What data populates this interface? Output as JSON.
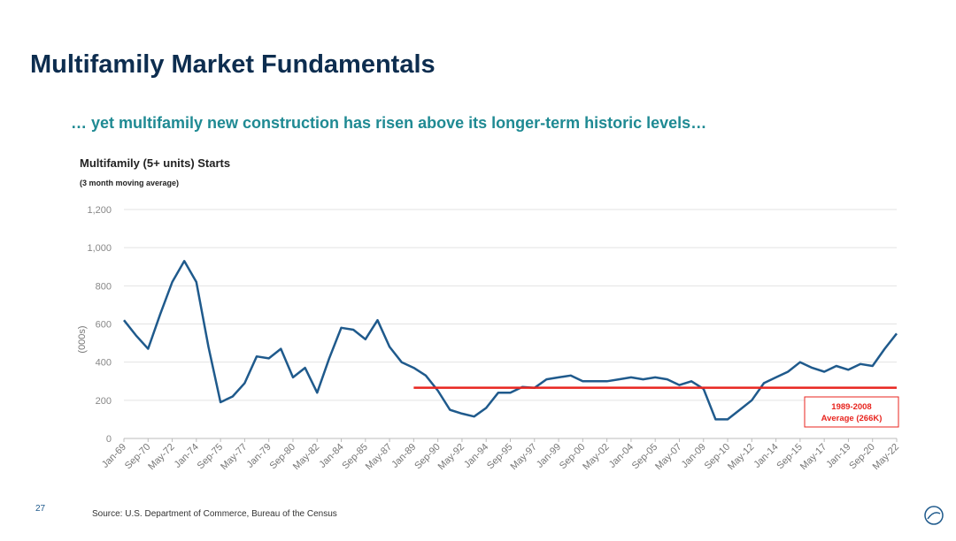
{
  "header": {
    "title": "Multifamily Market Fundamentals",
    "subtitle": "… yet multifamily new construction has risen above its longer-term historic levels…"
  },
  "chart_data": {
    "type": "line",
    "title": "Multifamily (5+ units) Starts",
    "subtitle": "(3 month moving average)",
    "y_label": "(000s)",
    "x": [
      "Jan-69",
      "Nov-69",
      "Sep-70",
      "Jul-71",
      "May-72",
      "Mar-73",
      "Jan-74",
      "Nov-74",
      "Sep-75",
      "Jul-76",
      "May-77",
      "Mar-78",
      "Jan-79",
      "Nov-79",
      "Sep-80",
      "Jul-81",
      "May-82",
      "Mar-83",
      "Jan-84",
      "Nov-84",
      "Sep-85",
      "Jul-86",
      "May-87",
      "Mar-88",
      "Jan-89",
      "Nov-89",
      "Sep-90",
      "Jul-91",
      "May-92",
      "Mar-93",
      "Jan-94",
      "Nov-94",
      "Sep-95",
      "Jul-96",
      "May-97",
      "Mar-98",
      "Jan-99",
      "Nov-99",
      "Sep-00",
      "Jul-01",
      "May-02",
      "Mar-03",
      "Jan-04",
      "Nov-04",
      "Sep-05",
      "Jul-06",
      "May-07",
      "Mar-08",
      "Jan-09",
      "Nov-09",
      "Sep-10",
      "Jul-11",
      "May-12",
      "Mar-13",
      "Jan-14",
      "Nov-14",
      "Sep-15",
      "Jul-16",
      "May-17",
      "Mar-18",
      "Jan-19",
      "Nov-19",
      "Sep-20",
      "Jul-21",
      "May-22"
    ],
    "series": [
      {
        "name": "Multifamily (5+ units) Starts",
        "color": "#1f5a8c",
        "values": [
          620,
          540,
          470,
          650,
          820,
          930,
          820,
          480,
          190,
          220,
          290,
          430,
          420,
          470,
          320,
          370,
          240,
          420,
          580,
          570,
          520,
          620,
          480,
          400,
          370,
          330,
          250,
          150,
          130,
          115,
          160,
          240,
          240,
          270,
          265,
          310,
          320,
          330,
          300,
          300,
          300,
          310,
          320,
          310,
          320,
          310,
          280,
          300,
          260,
          100,
          100,
          150,
          200,
          290,
          320,
          350,
          400,
          370,
          350,
          380,
          360,
          390,
          380,
          470,
          550
        ]
      }
    ],
    "xticks": [
      "Jan-69",
      "Sep-70",
      "May-72",
      "Jan-74",
      "Sep-75",
      "May-77",
      "Jan-79",
      "Sep-80",
      "May-82",
      "Jan-84",
      "Sep-85",
      "May-87",
      "Jan-89",
      "Sep-90",
      "May-92",
      "Jan-94",
      "Sep-95",
      "May-97",
      "Jan-99",
      "Sep-00",
      "May-02",
      "Jan-04",
      "Sep-05",
      "May-07",
      "Jan-09",
      "Sep-10",
      "May-12",
      "Jan-14",
      "Sep-15",
      "May-17",
      "Jan-19",
      "Sep-20",
      "May-22"
    ],
    "ylim": [
      0,
      1200
    ],
    "yticks": [
      0,
      200,
      400,
      600,
      800,
      {
        "value": 1000,
        "label": "1,000"
      },
      {
        "value": 1200,
        "label": "1,200"
      }
    ],
    "grid": true,
    "reference_line": {
      "value": 266,
      "start": "Jan-89",
      "color": "#e8251f",
      "label_lines": [
        "1989-2008",
        "Average (266K)"
      ]
    }
  },
  "footer": {
    "page": "27",
    "source": "Source: U.S. Department of Commerce, Bureau of the Census"
  }
}
